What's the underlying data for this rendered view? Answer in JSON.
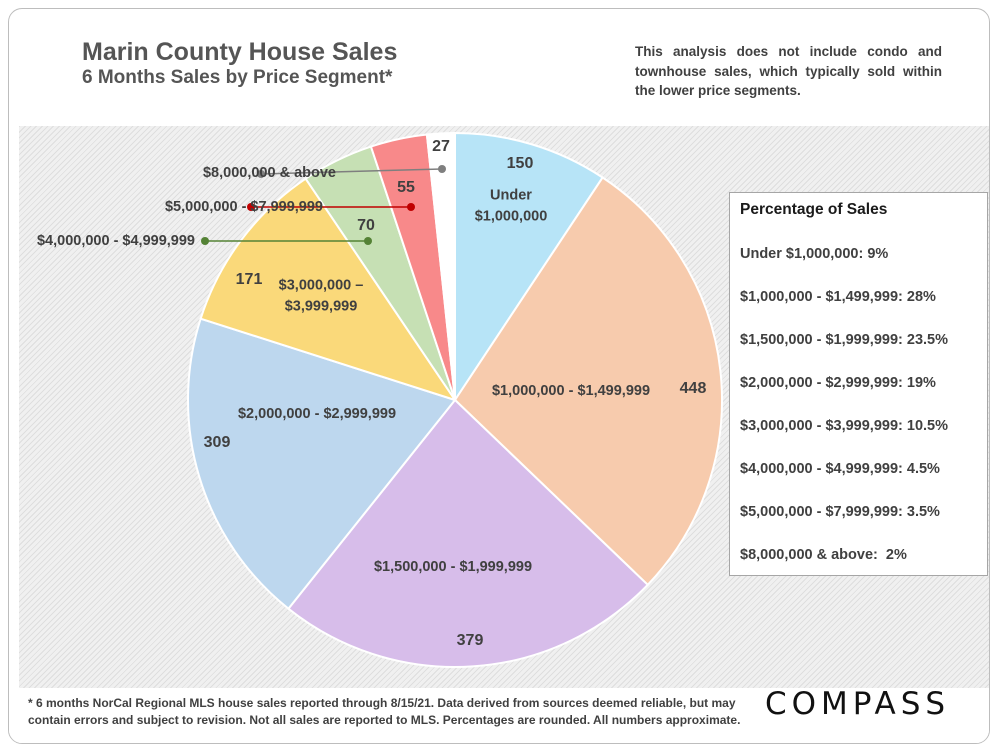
{
  "header": {
    "title": "Marin County House Sales",
    "subtitle": "6 Months Sales by Price Segment*",
    "note": "This analysis does not include condo and townhouse sales, which typically sold within the lower price segments."
  },
  "chart_data": {
    "type": "pie",
    "start": "12 o'clock, clockwise",
    "slices": [
      {
        "label_lines": [
          "Under",
          "$1,000,000"
        ],
        "value": 150,
        "color": "#b7e4f7"
      },
      {
        "label_lines": [
          "$1,000,000 - $1,499,999"
        ],
        "value": 448,
        "color": "#f7cbad"
      },
      {
        "label_lines": [
          "$1,500,000 - $1,999,999"
        ],
        "value": 379,
        "color": "#d7bdea"
      },
      {
        "label_lines": [
          "$2,000,000 - $2,999,999"
        ],
        "value": 309,
        "color": "#bdd7ee"
      },
      {
        "label_lines": [
          "$3,000,000 –",
          "$3,999,999"
        ],
        "value": 171,
        "color": "#fad97a"
      },
      {
        "label_lines": [
          "$4,000,000 - $4,999,999"
        ],
        "value": 70,
        "color": "#c6e0b4",
        "callout_dot": "#548235"
      },
      {
        "label_lines": [
          "$5,000,000 - $7,999,999"
        ],
        "value": 55,
        "color": "#f8898a",
        "callout_dot": "#c00000"
      },
      {
        "label_lines": [
          "$8,000,000 & above"
        ],
        "value": 27,
        "color": "#ffffff",
        "callout_dot": "#7f7f7f"
      }
    ]
  },
  "legend": {
    "title": "Percentage of Sales",
    "items": [
      "Under $1,000,000: 9%",
      "$1,000,000 - $1,499,999: 28%",
      "$1,500,000 - $1,999,999: 23.5%",
      "$2,000,000 - $2,999,999: 19%",
      "$3,000,000 - $3,999,999: 10.5%",
      "$4,000,000 - $4,999,999: 4.5%",
      "$5,000,000 - $7,999,999: 3.5%",
      "$8,000,000 & above:  2%"
    ]
  },
  "footer": {
    "footnote": "* 6 months NorCal Regional MLS house sales reported through 8/15/21. Data derived from sources deemed reliable, but may contain errors and subject to revision. Not all sales are reported to MLS. Percentages are rounded. All numbers approximate.",
    "logo": "COMPASS"
  }
}
